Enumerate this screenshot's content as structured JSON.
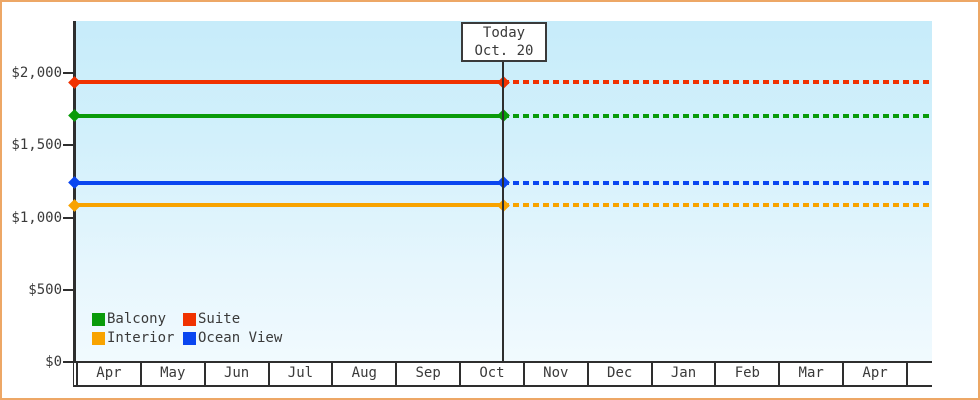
{
  "window": {
    "frame_border_color": "#eda766",
    "background_color": "#ffffff"
  },
  "chart": {
    "today_box": {
      "line1": "Today",
      "line2": "Oct. 20"
    },
    "legend": {
      "items": [
        {
          "label": "Balcony",
          "color": "#0a9b0a"
        },
        {
          "label": "Suite",
          "color": "#f03200"
        },
        {
          "label": "Interior",
          "color": "#f8a300"
        },
        {
          "label": "Ocean View",
          "color": "#0a46f0"
        }
      ]
    }
  },
  "chart_data": {
    "type": "line",
    "title": "",
    "xlabel": "",
    "ylabel": "",
    "x_categories": [
      "Apr",
      "May",
      "Jun",
      "Jul",
      "Aug",
      "Sep",
      "Oct",
      "Nov",
      "Dec",
      "Jan",
      "Feb",
      "Mar",
      "Apr"
    ],
    "y_ticks": [
      {
        "label": "$2,000",
        "value": 2000
      },
      {
        "label": "$1,500",
        "value": 1500
      },
      {
        "label": "$1,000",
        "value": 1000
      },
      {
        "label": "$500",
        "value": 500
      },
      {
        "label": "$0",
        "value": 0
      }
    ],
    "ylim": [
      0,
      2360
    ],
    "grid": false,
    "legend_position": "inside-bottom-left",
    "annotation": {
      "label": "Today",
      "date": "Oct. 20",
      "month": "Oct",
      "day": 20
    },
    "series_note": "Each cabin price is flat across all months; solid line before Today (Oct. 20), dotted projection after.",
    "series": [
      {
        "name": "Suite",
        "color": "#f03200",
        "value": 1935,
        "style_before_today": "solid",
        "style_after_today": "dashed"
      },
      {
        "name": "Balcony",
        "color": "#0a9b0a",
        "value": 1705,
        "style_before_today": "solid",
        "style_after_today": "dashed"
      },
      {
        "name": "Ocean View",
        "color": "#0a46f0",
        "value": 1240,
        "style_before_today": "solid",
        "style_after_today": "dashed"
      },
      {
        "name": "Interior",
        "color": "#f8a300",
        "value": 1085,
        "style_before_today": "solid",
        "style_after_today": "dashed"
      }
    ]
  }
}
